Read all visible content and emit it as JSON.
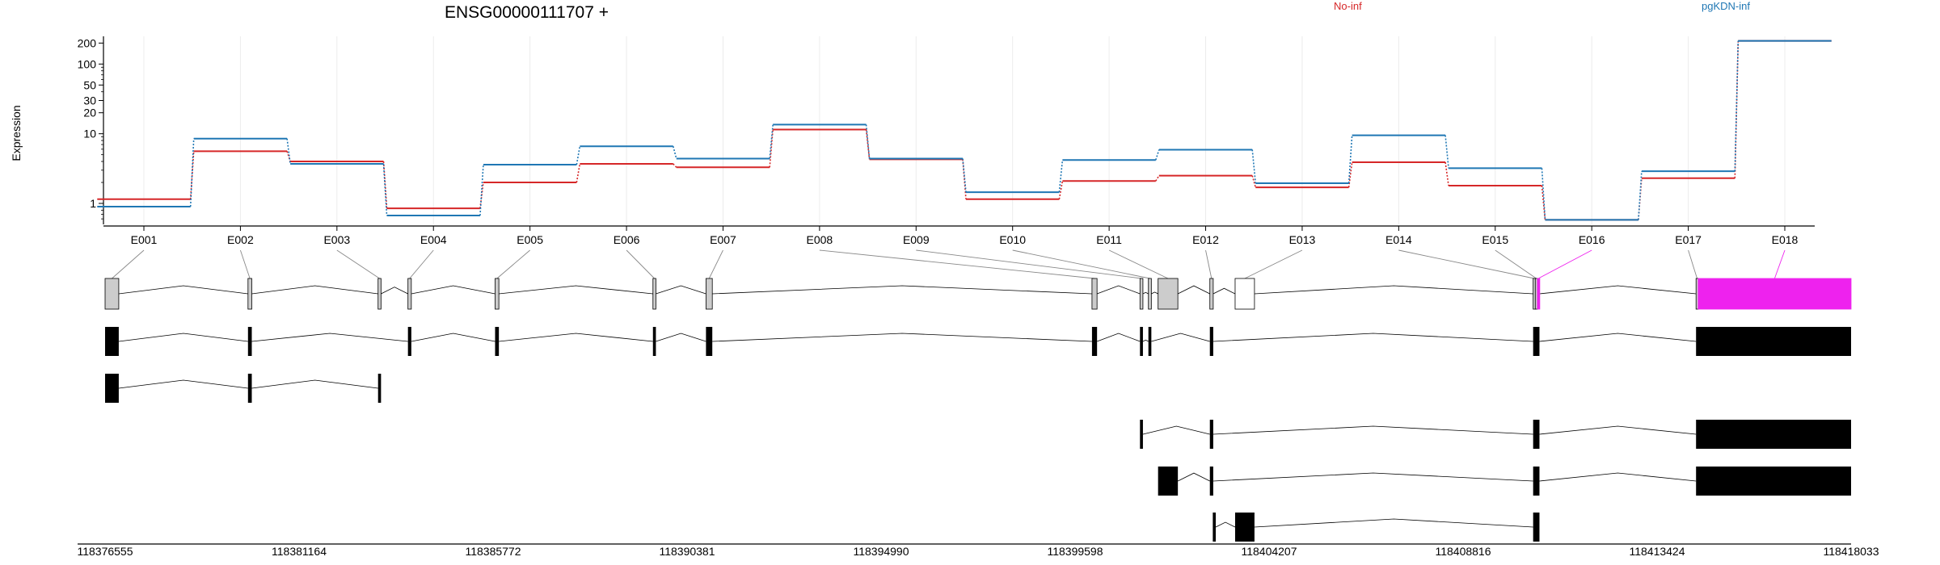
{
  "chart_data": {
    "type": "line",
    "title": "ENSG00000111707 +",
    "ylabel": "Expression",
    "yscale": "log",
    "ylim": [
      0.5,
      250
    ],
    "y_ticks": [
      "1",
      "10",
      "20",
      "30",
      "50",
      "100",
      "200"
    ],
    "y_tick_values": [
      1,
      10,
      20,
      30,
      50,
      100,
      200
    ],
    "grid": true,
    "categories": [
      "E001",
      "E002",
      "E003",
      "E004",
      "E005",
      "E006",
      "E007",
      "E008",
      "E009",
      "E010",
      "E011",
      "E012",
      "E013",
      "E014",
      "E015",
      "E016",
      "E017",
      "E018"
    ],
    "series": [
      {
        "name": "No-inf",
        "color": "#d62728",
        "values": [
          1.15,
          5.6,
          4.0,
          0.85,
          2.0,
          3.7,
          3.3,
          11.5,
          4.3,
          1.15,
          2.1,
          2.5,
          1.7,
          3.9,
          1.8,
          0.58,
          2.3,
          215
        ]
      },
      {
        "name": "pgKDN-inf",
        "color": "#1f77b4",
        "values": [
          0.9,
          8.5,
          3.7,
          0.67,
          3.6,
          6.6,
          4.4,
          13.5,
          4.4,
          1.45,
          4.2,
          5.9,
          1.95,
          9.5,
          3.2,
          0.58,
          2.9,
          215
        ]
      }
    ],
    "genomic_ticks": [
      "118376555",
      "118381164",
      "118385772",
      "118390381",
      "118394990",
      "118399598",
      "118404207",
      "118408816",
      "118413424",
      "118418033"
    ],
    "genomic_range": [
      118376555,
      118418033
    ],
    "highlighted_exon": "E016",
    "highlight_color": "#ee22ee",
    "exons": [
      {
        "id": "E001",
        "start": 118376555,
        "end": 118376880
      },
      {
        "id": "E002",
        "start": 118379950,
        "end": 118380040
      },
      {
        "id": "E003",
        "start": 118383040,
        "end": 118383110
      },
      {
        "id": "E004",
        "start": 118383750,
        "end": 118383830
      },
      {
        "id": "E005",
        "start": 118385820,
        "end": 118385910
      },
      {
        "id": "E006",
        "start": 118389570,
        "end": 118389640
      },
      {
        "id": "E007",
        "start": 118390830,
        "end": 118390980
      },
      {
        "id": "E008",
        "start": 118400000,
        "end": 118400120
      },
      {
        "id": "E009",
        "start": 118401140,
        "end": 118401210
      },
      {
        "id": "E010",
        "start": 118401340,
        "end": 118401410
      },
      {
        "id": "E011",
        "start": 118401570,
        "end": 118402040
      },
      {
        "id": "E012",
        "start": 118402800,
        "end": 118402880
      },
      {
        "id": "E013",
        "start": 118403400,
        "end": 118403860
      },
      {
        "id": "E014",
        "start": 118410480,
        "end": 118410530
      },
      {
        "id": "E015",
        "start": 118410530,
        "end": 118410580
      },
      {
        "id": "E016",
        "start": 118410580,
        "end": 118410630
      },
      {
        "id": "E017",
        "start": 118414350,
        "end": 118414400
      },
      {
        "id": "E018",
        "start": 118414400,
        "end": 118418033
      }
    ],
    "transcripts": [
      {
        "color": "#000000",
        "exons": [
          [
            118376555,
            118376880
          ],
          [
            118379950,
            118380040
          ],
          [
            118383750,
            118383830
          ],
          [
            118385820,
            118385910
          ],
          [
            118389570,
            118389640
          ],
          [
            118390830,
            118390980
          ],
          [
            118400000,
            118400120
          ],
          [
            118401140,
            118401210
          ],
          [
            118401340,
            118401410
          ],
          [
            118402800,
            118402880
          ],
          [
            118410480,
            118410630
          ],
          [
            118414350,
            118418033
          ]
        ]
      },
      {
        "color": "#000000",
        "exons": [
          [
            118376555,
            118376880
          ],
          [
            118379950,
            118380040
          ],
          [
            118383040,
            118383110
          ]
        ]
      },
      {
        "color": "#000000",
        "exons": [
          [
            118401140,
            118401210
          ],
          [
            118402800,
            118402880
          ],
          [
            118410480,
            118410630
          ],
          [
            118414350,
            118418033
          ]
        ]
      },
      {
        "color": "#000000",
        "exons": [
          [
            118401570,
            118402040
          ],
          [
            118402800,
            118402880
          ],
          [
            118410480,
            118410630
          ],
          [
            118414350,
            118418033
          ]
        ]
      },
      {
        "color": "#000000",
        "exons": [
          [
            118402870,
            118402940
          ],
          [
            118403400,
            118403860
          ],
          [
            118410480,
            118410630
          ]
        ]
      }
    ]
  }
}
